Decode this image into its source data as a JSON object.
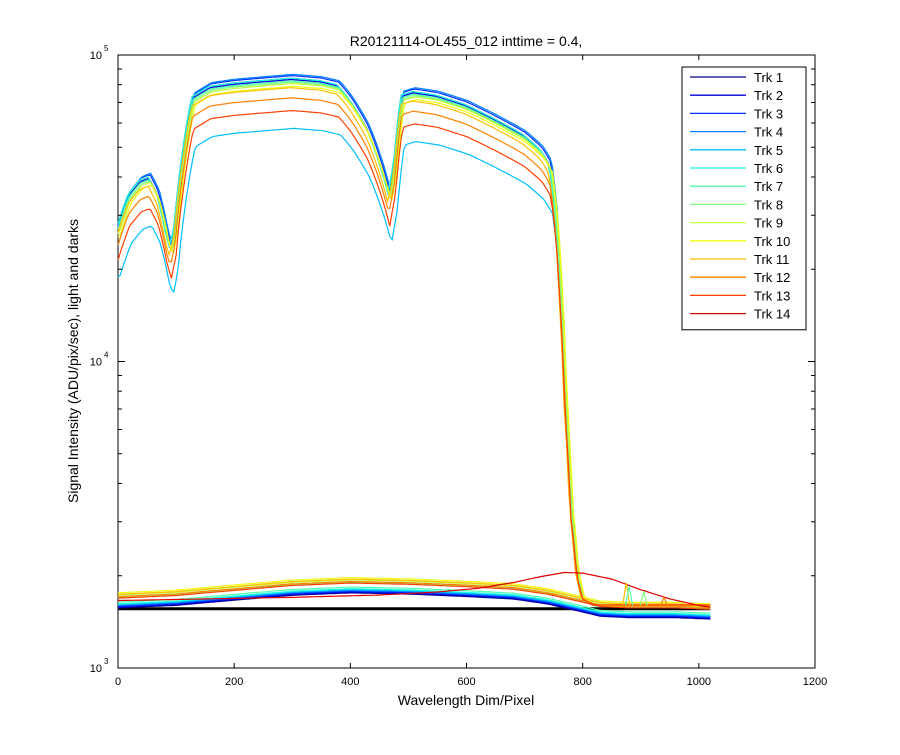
{
  "chart_data": {
    "type": "line",
    "title": "R20121114-OL455_012 inttime = 0.4,",
    "xlabel": "Wavelength Dim/Pixel",
    "ylabel": "Signal Intensity (ADU/pix/sec), light and darks",
    "xlim": [
      0,
      1200
    ],
    "ylim": [
      1000,
      100000
    ],
    "yscale": "log",
    "xticks": [
      0,
      200,
      400,
      600,
      800,
      1000,
      1200
    ],
    "yticks": [
      {
        "value": 1000,
        "base": "10",
        "exp": "3"
      },
      {
        "value": 10000,
        "base": "10",
        "exp": "4"
      },
      {
        "value": 100000,
        "base": "10",
        "exp": "5"
      }
    ],
    "grid": false,
    "legend_position": "top-right",
    "series": [
      {
        "name": "Trk 1",
        "color": "#00008F",
        "scale": 1.0,
        "dark": 1570
      },
      {
        "name": "Trk 2",
        "color": "#0000DF",
        "scale": 0.99,
        "dark": 1580
      },
      {
        "name": "Trk 3",
        "color": "#0030FF",
        "scale": 1.02,
        "dark": 1590
      },
      {
        "name": "Trk 4",
        "color": "#0080FF",
        "scale": 1.03,
        "dark": 1600
      },
      {
        "name": "Trk 5",
        "color": "#00BFFF",
        "scale": 0.68,
        "dark": 1610
      },
      {
        "name": "Trk 6",
        "color": "#20FFDF",
        "scale": 1.0,
        "dark": 1620
      },
      {
        "name": "Trk 7",
        "color": "#50FFAF",
        "scale": 0.98,
        "dark": 1640
      },
      {
        "name": "Trk 8",
        "color": "#80FF80",
        "scale": 0.97,
        "dark": 1700
      },
      {
        "name": "Trk 9",
        "color": "#BFFF40",
        "scale": 0.96,
        "dark": 1730
      },
      {
        "name": "Trk 10",
        "color": "#EFFF10",
        "scale": 0.94,
        "dark": 1760
      },
      {
        "name": "Trk 11",
        "color": "#FFBF00",
        "scale": 0.93,
        "dark": 1740
      },
      {
        "name": "Trk 12",
        "color": "#FF8000",
        "scale": 0.86,
        "dark": 1710
      },
      {
        "name": "Trk 13",
        "color": "#FF4000",
        "scale": 0.78,
        "dark": 1690
      },
      {
        "name": "Trk 14",
        "color": "#DF0000",
        "scale": 0.0,
        "dark": 1700
      }
    ],
    "light_profile": {
      "x": [
        0,
        20,
        40,
        55,
        70,
        85,
        92,
        100,
        115,
        130,
        160,
        200,
        250,
        300,
        350,
        380,
        400,
        430,
        455,
        468,
        478,
        490,
        510,
        550,
        600,
        650,
        700,
        730,
        745,
        755,
        762,
        770,
        780,
        790,
        800,
        820,
        900,
        1020
      ],
      "y": [
        27000,
        35000,
        39000,
        40000,
        35000,
        26000,
        23500,
        28000,
        50000,
        73000,
        79000,
        81000,
        82500,
        84000,
        82500,
        80000,
        72000,
        58000,
        43000,
        35000,
        45000,
        74000,
        76000,
        74000,
        69000,
        62000,
        55000,
        49000,
        44000,
        30000,
        18000,
        8000,
        3500,
        2100,
        1700,
        1600,
        1580,
        1570
      ]
    },
    "dark_profile": {
      "x": [
        0,
        100,
        200,
        300,
        400,
        500,
        600,
        680,
        740,
        790,
        830,
        880,
        960,
        1020
      ],
      "y": [
        1.0,
        1.02,
        1.06,
        1.1,
        1.12,
        1.11,
        1.09,
        1.07,
        1.03,
        0.98,
        0.94,
        0.93,
        0.93,
        0.92
      ]
    },
    "trk14_curve": {
      "x": [
        0,
        150,
        300,
        450,
        550,
        620,
        680,
        730,
        770,
        800,
        850,
        900,
        950,
        1000,
        1020
      ],
      "y": [
        1660,
        1680,
        1700,
        1730,
        1770,
        1820,
        1900,
        1990,
        2050,
        2040,
        1950,
        1800,
        1680,
        1600,
        1580
      ]
    },
    "baseline": {
      "value": 1560,
      "color": "#000000"
    }
  }
}
